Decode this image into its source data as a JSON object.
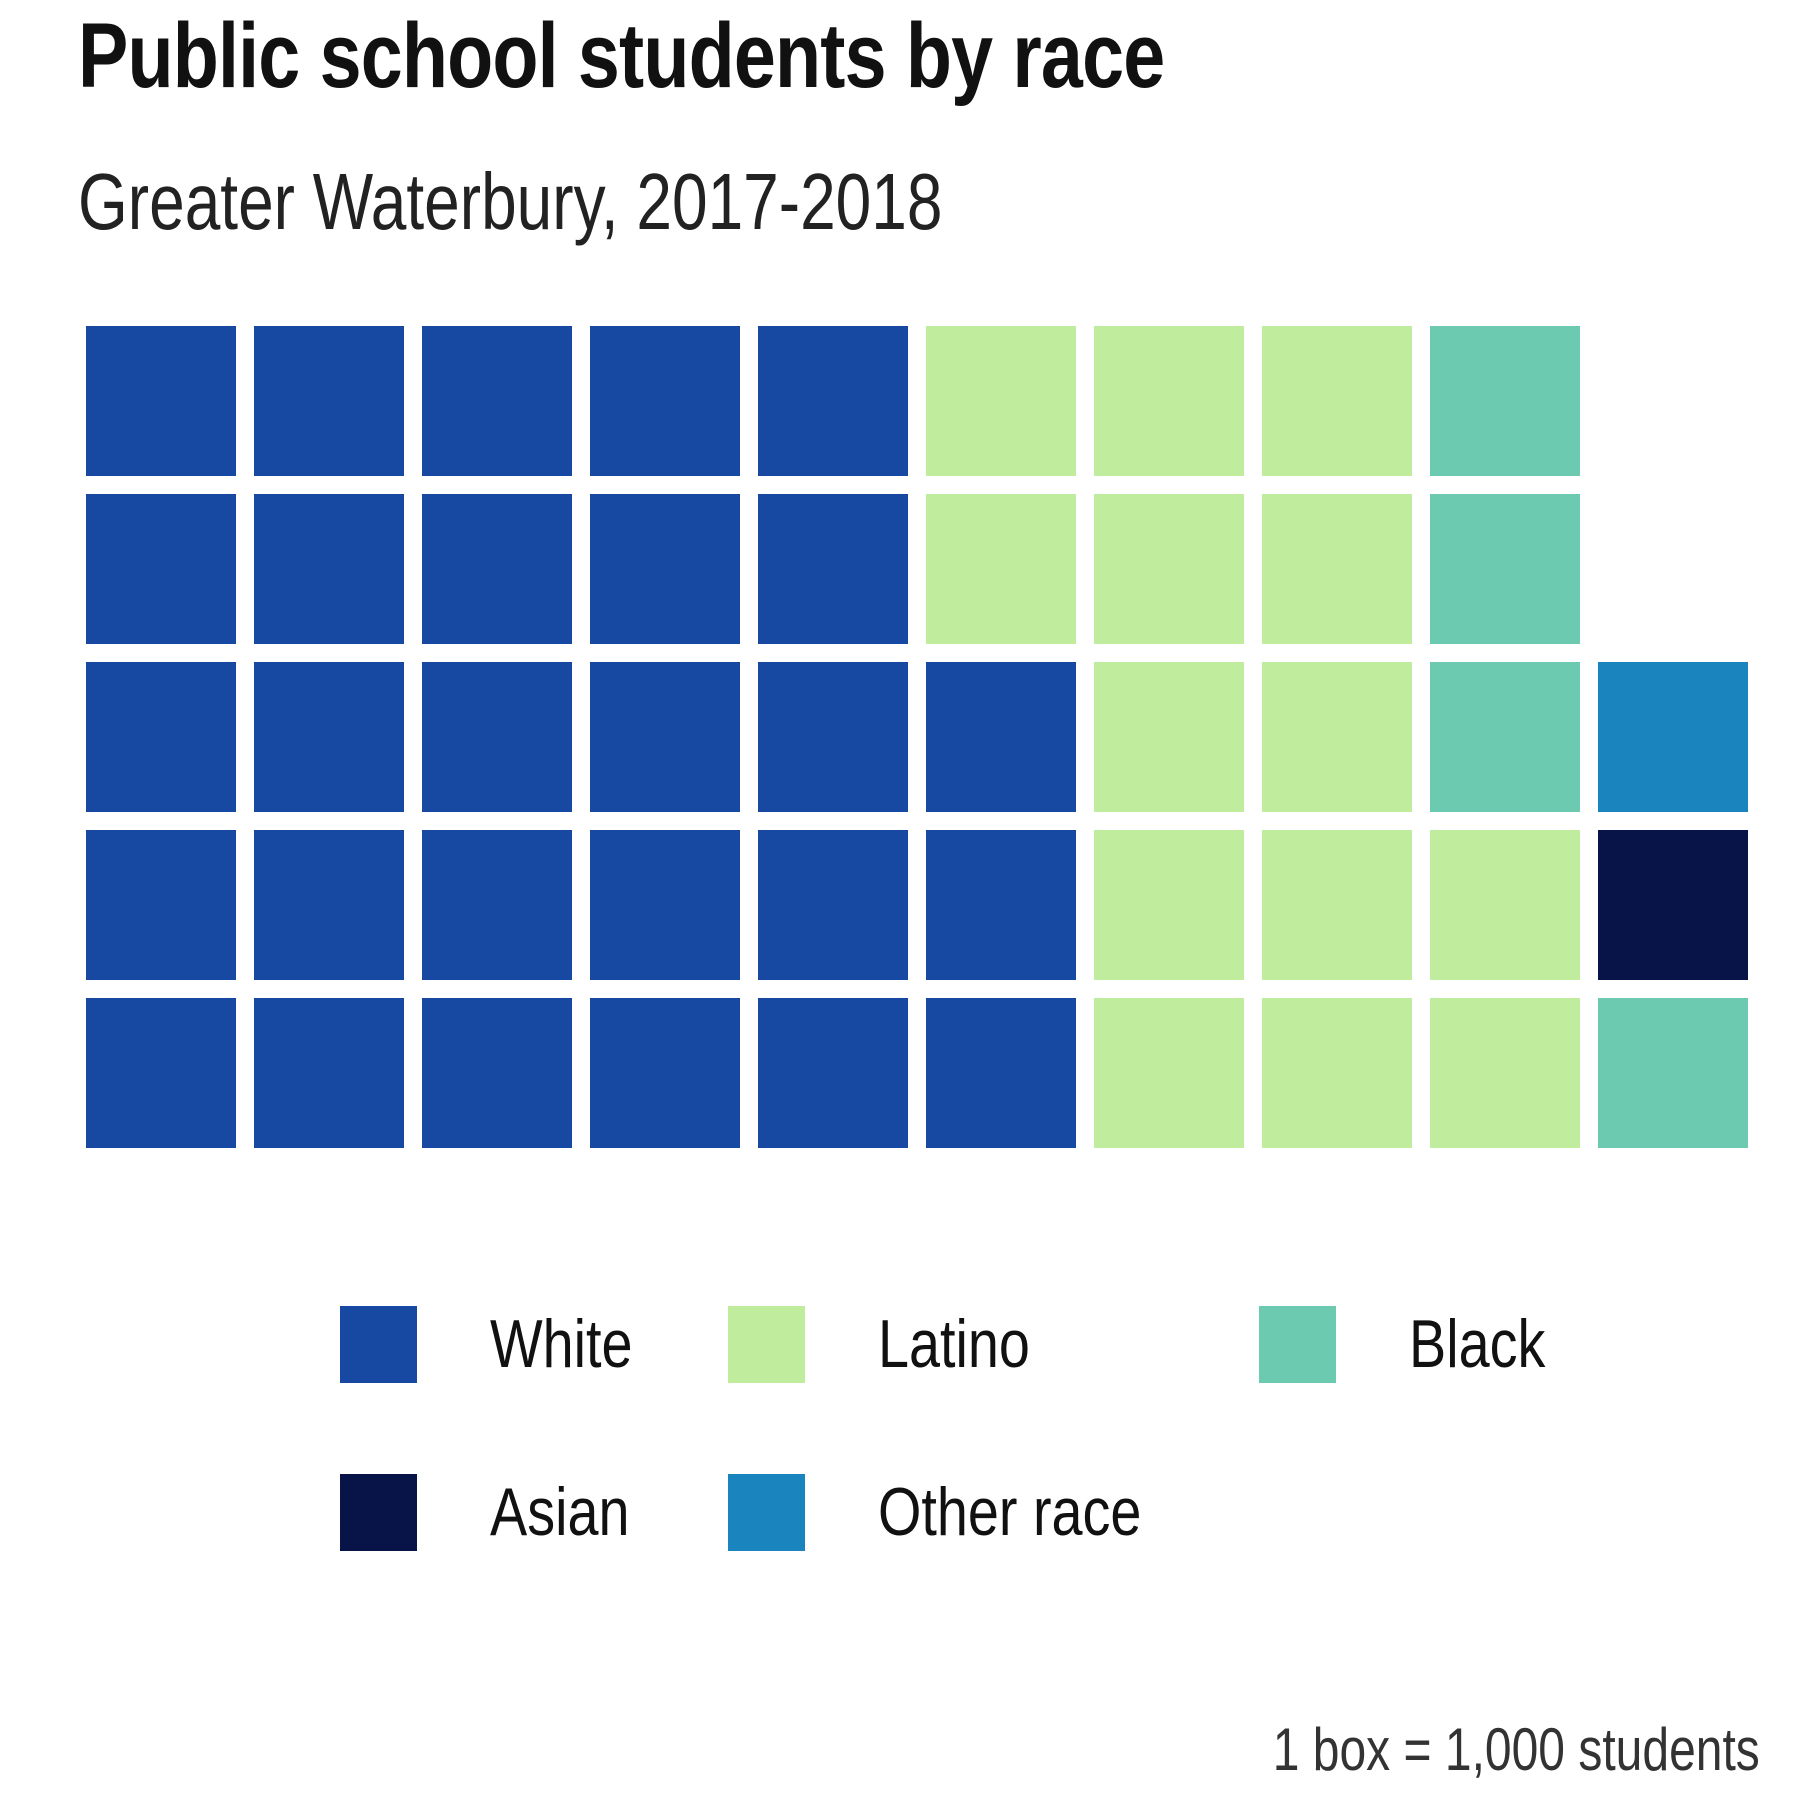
{
  "chart_data": {
    "type": "waffle",
    "title": "Public school students by race",
    "subtitle": "Greater Waterbury, 2017-2018",
    "caption": "1 box = 1,000 students",
    "rows": 5,
    "columns": 10,
    "fill_order": "column-wise, bottom to top",
    "box_value": 1000,
    "categories": [
      "White",
      "Latino",
      "Black",
      "Asian",
      "Other race"
    ],
    "values": [
      28,
      14,
      4,
      1,
      1
    ],
    "colors": {
      "White": "#1749a3",
      "Latino": "#bfed9d",
      "Black": "#6ccab0",
      "Asian": "#081447",
      "Other race": "#1a84bf"
    },
    "legend": {
      "position": "bottom",
      "rows": [
        [
          "White",
          "Latino",
          "Black"
        ],
        [
          "Asian",
          "Other race"
        ]
      ]
    },
    "grid": false
  }
}
